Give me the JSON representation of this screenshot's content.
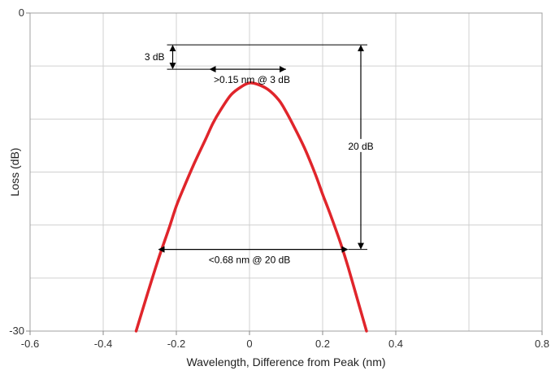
{
  "chart_data": {
    "type": "line",
    "title": "",
    "xlabel": "Wavelength, Difference from Peak (nm)",
    "ylabel": "Loss (dB)",
    "xlim": [
      -0.6,
      0.8
    ],
    "ylim": [
      -30,
      0
    ],
    "x_ticks": [
      "-0.6",
      "-0.4",
      "-0.2",
      "0",
      "0.2",
      "0.4",
      "0.8"
    ],
    "x_tick_values": [
      -0.6,
      -0.4,
      -0.2,
      0,
      0.2,
      0.4,
      0.8
    ],
    "y_ticks": [
      "0",
      "-30"
    ],
    "y_tick_values": [
      0,
      -30
    ],
    "y_grid_values": [
      -5,
      -10,
      -15,
      -20,
      -25
    ],
    "x_grid_values": [
      -0.4,
      -0.2,
      0,
      0.2,
      0.4,
      0.6
    ],
    "grid": true,
    "series": [
      {
        "color": "#e0252b",
        "x": [
          -0.31,
          -0.28,
          -0.25,
          -0.22,
          -0.2,
          -0.18,
          -0.15,
          -0.12,
          -0.1,
          -0.08,
          -0.05,
          -0.02,
          0,
          0.02,
          0.05,
          0.08,
          0.1,
          0.12,
          0.15,
          0.18,
          0.2,
          0.22,
          0.25,
          0.27,
          0.3,
          0.32
        ],
        "y": [
          -30,
          -26.6,
          -23.3,
          -20.3,
          -18.2,
          -16.5,
          -14.1,
          -11.9,
          -10.4,
          -9.2,
          -7.7,
          -6.9,
          -6.6,
          -6.7,
          -7.2,
          -8.2,
          -9.3,
          -10.6,
          -12.7,
          -15.2,
          -17.1,
          -18.9,
          -21.8,
          -24.0,
          -27.6,
          -30
        ]
      }
    ],
    "annotations": {
      "three_db": {
        "label": "3 dB",
        "top": -3.0,
        "bottom": -5.3,
        "x": -0.21
      },
      "width_3db": {
        "label": ">0.15 nm @ 3 dB",
        "x1": -0.11,
        "x2": 0.1,
        "y": -5.3
      },
      "twenty_db": {
        "label": "20 dB",
        "top": -3.0,
        "bottom": -22.3,
        "x": 0.3
      },
      "width_20db": {
        "label": "<0.68 nm @ 20 dB",
        "x1": -0.25,
        "x2": 0.27,
        "y": -22.3
      }
    }
  }
}
